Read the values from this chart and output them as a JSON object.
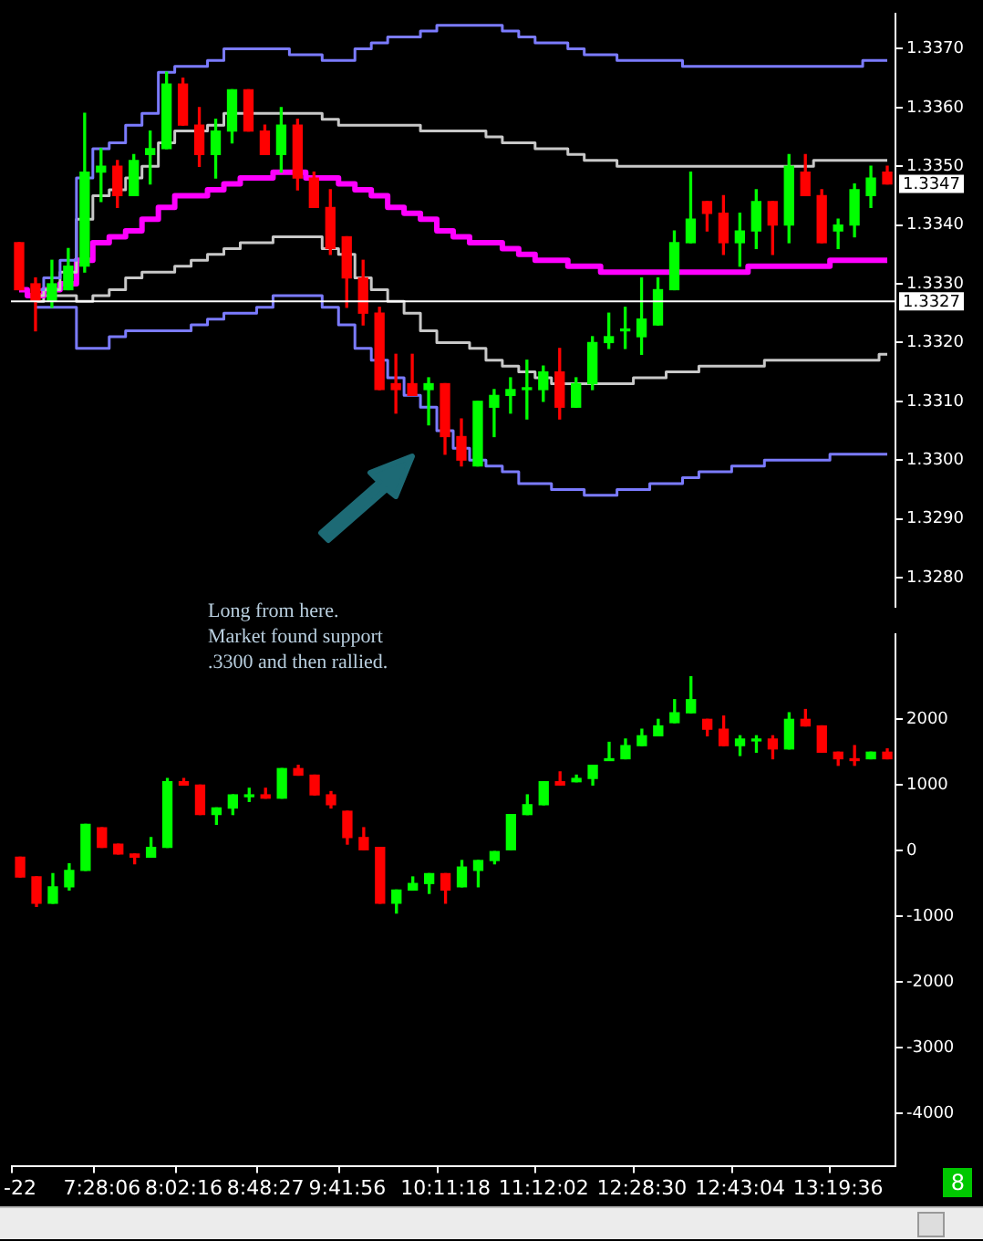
{
  "chart_data": [
    {
      "type": "candlestick",
      "categories": [
        null,
        null,
        null,
        null,
        null,
        null,
        null,
        null,
        null,
        null,
        null,
        null,
        null,
        null,
        null,
        null,
        null,
        null,
        null,
        null,
        null,
        null,
        null,
        null,
        null,
        null,
        null,
        null,
        null,
        null,
        null,
        null,
        null,
        null,
        null,
        null,
        null,
        null,
        null,
        null,
        null,
        null,
        null,
        null,
        null,
        null,
        null,
        null,
        null,
        null,
        null,
        null,
        null,
        null
      ],
      "ohlc": [
        [
          1.3337,
          1.3337,
          1.3329,
          1.3329
        ],
        [
          1.333,
          1.3331,
          1.3322,
          1.3327
        ],
        [
          1.3327,
          1.3334,
          1.3326,
          1.333
        ],
        [
          1.3329,
          1.3336,
          1.3329,
          1.3333
        ],
        [
          1.3333,
          1.3359,
          1.3332,
          1.3349
        ],
        [
          1.3349,
          1.3353,
          1.3344,
          1.335
        ],
        [
          1.335,
          1.3351,
          1.3343,
          1.3345
        ],
        [
          1.3345,
          1.3352,
          1.3345,
          1.3351
        ],
        [
          1.3352,
          1.3356,
          1.3347,
          1.3353
        ],
        [
          1.3353,
          1.3366,
          1.3353,
          1.3364
        ],
        [
          1.3364,
          1.3365,
          1.3357,
          1.3357
        ],
        [
          1.3357,
          1.336,
          1.335,
          1.3352
        ],
        [
          1.3352,
          1.3358,
          1.3348,
          1.3356
        ],
        [
          1.3356,
          1.3363,
          1.3354,
          1.3363
        ],
        [
          1.3363,
          1.3363,
          1.3356,
          1.3356
        ],
        [
          1.3356,
          1.3357,
          1.3352,
          1.3352
        ],
        [
          1.3352,
          1.336,
          1.3349,
          1.3357
        ],
        [
          1.3357,
          1.3358,
          1.3346,
          1.3348
        ],
        [
          1.3348,
          1.3349,
          1.3343,
          1.3343
        ],
        [
          1.3343,
          1.3346,
          1.3335,
          1.3336
        ],
        [
          1.3338,
          1.3338,
          1.3326,
          1.3331
        ],
        [
          1.3331,
          1.3334,
          1.3323,
          1.3325
        ],
        [
          1.3325,
          1.3326,
          1.3312,
          1.3312
        ],
        [
          1.3313,
          1.3318,
          1.3308,
          1.3312
        ],
        [
          1.3313,
          1.3318,
          1.3311,
          1.3311
        ],
        [
          1.3312,
          1.3314,
          1.3306,
          1.3313
        ],
        [
          1.3313,
          1.3313,
          1.3301,
          1.3304
        ],
        [
          1.3304,
          1.3307,
          1.3299,
          1.33
        ],
        [
          1.3299,
          1.331,
          1.3299,
          1.331
        ],
        [
          1.3309,
          1.3312,
          1.3304,
          1.3311
        ],
        [
          1.3311,
          1.3314,
          1.3308,
          1.3312
        ],
        [
          1.3312,
          1.3317,
          1.3307,
          1.3312
        ],
        [
          1.3312,
          1.3316,
          1.331,
          1.3315
        ],
        [
          1.3315,
          1.3319,
          1.3307,
          1.3309
        ],
        [
          1.3309,
          1.3314,
          1.3309,
          1.3313
        ],
        [
          1.3313,
          1.3321,
          1.3312,
          1.332
        ],
        [
          1.332,
          1.3325,
          1.3319,
          1.3321
        ],
        [
          1.3322,
          1.3326,
          1.3319,
          1.3322
        ],
        [
          1.3321,
          1.3331,
          1.3318,
          1.3324
        ],
        [
          1.3323,
          1.3331,
          1.3323,
          1.3329
        ],
        [
          1.3329,
          1.3339,
          1.3329,
          1.3337
        ],
        [
          1.3337,
          1.3349,
          1.3337,
          1.3341
        ],
        [
          1.3344,
          1.3344,
          1.3339,
          1.3342
        ],
        [
          1.3342,
          1.3345,
          1.3335,
          1.3337
        ],
        [
          1.3337,
          1.3342,
          1.3333,
          1.3339
        ],
        [
          1.3339,
          1.3346,
          1.3336,
          1.3344
        ],
        [
          1.3344,
          1.3344,
          1.3335,
          1.334
        ],
        [
          1.334,
          1.3352,
          1.3337,
          1.335
        ],
        [
          1.3349,
          1.3352,
          1.3345,
          1.3345
        ],
        [
          1.3345,
          1.3346,
          1.3337,
          1.3337
        ],
        [
          1.3339,
          1.3341,
          1.3336,
          1.334
        ],
        [
          1.334,
          1.3347,
          1.3338,
          1.3346
        ],
        [
          1.3345,
          1.335,
          1.3343,
          1.3348
        ],
        [
          1.3349,
          1.335,
          1.3347,
          1.3347
        ]
      ],
      "colors": [
        "#ff0000",
        "#ff0000",
        "#00ff00",
        "#00ff00",
        "#00ff00",
        "#00ff00",
        "#ff0000",
        "#00ff00",
        "#00ff00",
        "#00ff00",
        "#ff0000",
        "#ff0000",
        "#00ff00",
        "#00ff00",
        "#ff0000",
        "#ff0000",
        "#00ff00",
        "#ff0000",
        "#ff0000",
        "#ff0000",
        "#ff0000",
        "#ff0000",
        "#ff0000",
        "#ff0000",
        "#ff0000",
        "#00ff00",
        "#ff0000",
        "#ff0000",
        "#00ff00",
        "#00ff00",
        "#00ff00",
        "#00ff00",
        "#00ff00",
        "#ff0000",
        "#00ff00",
        "#00ff00",
        "#00ff00",
        "#00ff00",
        "#00ff00",
        "#00ff00",
        "#00ff00",
        "#00ff00",
        "#ff0000",
        "#ff0000",
        "#00ff00",
        "#00ff00",
        "#ff0000",
        "#00ff00",
        "#ff0000",
        "#ff0000",
        "#00ff00",
        "#00ff00",
        "#00ff00",
        "#ff0000"
      ],
      "series": [
        {
          "type": "step",
          "color": "#7b7bff",
          "values": [
            null,
            1.3329,
            1.3331,
            1.3334,
            1.3348,
            1.3353,
            1.3354,
            1.3357,
            1.3359,
            1.3366,
            1.3367,
            1.3367,
            1.3368,
            1.337,
            1.337,
            1.337,
            1.337,
            1.3369,
            1.3369,
            1.3368,
            1.3368,
            1.337,
            1.3371,
            1.3372,
            1.3372,
            1.3373,
            1.3374,
            1.3374,
            1.3374,
            1.3374,
            1.3373,
            1.3372,
            1.3371,
            1.3371,
            1.337,
            1.3369,
            1.3369,
            1.3368,
            1.3368,
            1.3368,
            1.3368,
            1.3367,
            1.3367,
            1.3367,
            1.3367,
            1.3367,
            1.3367,
            1.3367,
            1.3367,
            1.3367,
            1.3367,
            1.3367,
            1.3368,
            1.3368
          ]
        },
        {
          "type": "step",
          "color": "#c8c8c8",
          "values": [
            null,
            1.3328,
            1.3329,
            1.3332,
            1.3341,
            1.3345,
            1.3346,
            1.3348,
            1.335,
            1.3354,
            1.3356,
            1.3356,
            1.3357,
            1.3359,
            1.3359,
            1.3359,
            1.3359,
            1.3359,
            1.3359,
            1.3358,
            1.3357,
            1.3357,
            1.3357,
            1.3357,
            1.3357,
            1.3356,
            1.3356,
            1.3356,
            1.3356,
            1.3355,
            1.3354,
            1.3354,
            1.3353,
            1.3353,
            1.3352,
            1.3351,
            1.3351,
            1.335,
            1.335,
            1.335,
            1.335,
            1.335,
            1.335,
            1.335,
            1.335,
            1.335,
            1.335,
            1.335,
            1.335,
            1.3351,
            1.3351,
            1.3351,
            1.3351,
            1.3351
          ]
        },
        {
          "type": "step",
          "color": "#ff00ff",
          "values": [
            1.3329,
            1.3328,
            1.3329,
            1.333,
            1.3334,
            1.3337,
            1.3338,
            1.3339,
            1.3341,
            1.3343,
            1.3345,
            1.3345,
            1.3346,
            1.3347,
            1.3348,
            1.3348,
            1.3349,
            1.3349,
            1.3348,
            1.3348,
            1.3347,
            1.3346,
            1.3345,
            1.3343,
            1.3342,
            1.3341,
            1.3339,
            1.3338,
            1.3337,
            1.3337,
            1.3336,
            1.3335,
            1.3334,
            1.3334,
            1.3333,
            1.3333,
            1.3332,
            1.3332,
            1.3332,
            1.3332,
            1.3332,
            1.3332,
            1.3332,
            1.3332,
            1.3332,
            1.3333,
            1.3333,
            1.3333,
            1.3333,
            1.3333,
            1.3334,
            1.3334,
            1.3334,
            1.3334
          ]
        },
        {
          "type": "step",
          "color": "#c8c8c8",
          "values": [
            null,
            1.3327,
            1.3328,
            1.3328,
            1.3327,
            1.3328,
            1.3329,
            1.3331,
            1.3332,
            1.3332,
            1.3333,
            1.3334,
            1.3335,
            1.3336,
            1.3337,
            1.3337,
            1.3338,
            1.3338,
            1.3338,
            1.3336,
            1.3335,
            1.3331,
            1.3329,
            1.3327,
            1.3325,
            1.3322,
            1.332,
            1.332,
            1.3319,
            1.3317,
            1.3316,
            1.3315,
            1.3314,
            1.3313,
            1.3313,
            1.3313,
            1.3313,
            1.3313,
            1.3314,
            1.3314,
            1.3315,
            1.3315,
            1.3316,
            1.3316,
            1.3316,
            1.3316,
            1.3317,
            1.3317,
            1.3317,
            1.3317,
            1.3317,
            1.3317,
            1.3317,
            1.3318
          ]
        },
        {
          "type": "step",
          "color": "#7b7bff",
          "values": [
            null,
            1.3326,
            1.3326,
            1.3326,
            1.3319,
            1.3319,
            1.3321,
            1.3322,
            1.3322,
            1.3322,
            1.3322,
            1.3323,
            1.3324,
            1.3325,
            1.3325,
            1.3326,
            1.3328,
            1.3328,
            1.3328,
            1.3326,
            1.3323,
            1.3319,
            1.3317,
            1.3314,
            1.3311,
            1.3309,
            1.3305,
            1.3302,
            1.33,
            1.3299,
            1.3298,
            1.3296,
            1.3296,
            1.3295,
            1.3295,
            1.3294,
            1.3294,
            1.3295,
            1.3295,
            1.3296,
            1.3296,
            1.3297,
            1.3298,
            1.3298,
            1.3299,
            1.3299,
            1.33,
            1.33,
            1.33,
            1.33,
            1.3301,
            1.3301,
            1.3301,
            1.3301
          ]
        }
      ],
      "ref_lines": [
        {
          "axis": "y",
          "value": 1.3327,
          "label": "1.3327",
          "color": "#ffffff"
        }
      ],
      "annotations": [
        "Long from here.\nMarket found support\n.3300 and then rallied.",
        "1.3347"
      ],
      "ylim": [
        1.3275,
        1.3376
      ],
      "yticks": [
        {
          "value": 1.328,
          "label": "1.3280"
        },
        {
          "value": 1.329,
          "label": "1.3290"
        },
        {
          "value": 1.33,
          "label": "1.3300"
        },
        {
          "value": 1.331,
          "label": "1.3310"
        },
        {
          "value": 1.332,
          "label": "1.3320"
        },
        {
          "value": 1.333,
          "label": "1.3330"
        },
        {
          "value": 1.334,
          "label": "1.3340"
        },
        {
          "value": 1.335,
          "label": "1.3350"
        },
        {
          "value": 1.336,
          "label": "1.3360"
        },
        {
          "value": 1.337,
          "label": "1.3370"
        }
      ],
      "tick_labels": "y"
    },
    {
      "type": "candlestick",
      "categories": [
        "-22",
        null,
        null,
        null,
        null,
        "7:28:06",
        null,
        null,
        null,
        null,
        "8:02:16",
        null,
        null,
        null,
        null,
        "8:48:27",
        null,
        null,
        null,
        null,
        "9:41:56",
        null,
        null,
        null,
        null,
        null,
        "10:11:18",
        null,
        null,
        null,
        null,
        null,
        "11:12:02",
        null,
        null,
        null,
        null,
        null,
        "12:28:30",
        null,
        null,
        null,
        null,
        null,
        "12:43:04",
        null,
        null,
        null,
        null,
        null,
        "13:19:36",
        null,
        null,
        null
      ],
      "ohlc": [
        [
          -100,
          -100,
          -400,
          -400
        ],
        [
          -400,
          -400,
          -850,
          -800
        ],
        [
          -800,
          -350,
          -800,
          -550
        ],
        [
          -550,
          -200,
          -600,
          -300
        ],
        [
          -300,
          400,
          -300,
          400
        ],
        [
          350,
          350,
          50,
          50
        ],
        [
          100,
          100,
          -50,
          -50
        ],
        [
          -50,
          -50,
          -200,
          -100
        ],
        [
          -100,
          200,
          -100,
          50
        ],
        [
          50,
          1100,
          50,
          1050
        ],
        [
          1050,
          1100,
          1000,
          1000
        ],
        [
          1000,
          1000,
          550,
          550
        ],
        [
          550,
          650,
          400,
          650
        ],
        [
          650,
          850,
          550,
          850
        ],
        [
          850,
          950,
          750,
          850
        ],
        [
          850,
          950,
          800,
          800
        ],
        [
          800,
          1250,
          800,
          1250
        ],
        [
          1250,
          1300,
          1150,
          1150
        ],
        [
          1150,
          1150,
          850,
          850
        ],
        [
          850,
          900,
          650,
          700
        ],
        [
          600,
          600,
          100,
          200
        ],
        [
          200,
          350,
          0,
          0
        ],
        [
          50,
          50,
          -800,
          -800
        ],
        [
          -800,
          -600,
          -950,
          -600
        ],
        [
          -600,
          -400,
          -600,
          -500
        ],
        [
          -500,
          -350,
          -650,
          -350
        ],
        [
          -350,
          -350,
          -800,
          -600
        ],
        [
          -550,
          -150,
          -550,
          -250
        ],
        [
          -300,
          -150,
          -550,
          -150
        ],
        [
          -150,
          0,
          -200,
          0
        ],
        [
          0,
          550,
          0,
          550
        ],
        [
          550,
          850,
          550,
          700
        ],
        [
          700,
          1050,
          700,
          1050
        ],
        [
          1050,
          1200,
          1000,
          1000
        ],
        [
          1050,
          1150,
          1050,
          1100
        ],
        [
          1100,
          1300,
          1000,
          1300
        ],
        [
          1400,
          1650,
          1400,
          1400
        ],
        [
          1400,
          1700,
          1400,
          1600
        ],
        [
          1600,
          1850,
          1600,
          1750
        ],
        [
          1750,
          2000,
          1750,
          1900
        ],
        [
          1950,
          2300,
          1950,
          2100
        ],
        [
          2100,
          2650,
          2100,
          2300
        ],
        [
          2000,
          2000,
          1750,
          1850
        ],
        [
          1850,
          2050,
          1600,
          1600
        ],
        [
          1600,
          1750,
          1450,
          1700
        ],
        [
          1700,
          1750,
          1500,
          1700
        ],
        [
          1700,
          1750,
          1400,
          1550
        ],
        [
          1550,
          2100,
          1550,
          2000
        ],
        [
          2000,
          2150,
          1900,
          1900
        ],
        [
          1900,
          1900,
          1500,
          1500
        ],
        [
          1500,
          1500,
          1300,
          1400
        ],
        [
          1400,
          1600,
          1300,
          1400
        ],
        [
          1400,
          1500,
          1400,
          1500
        ],
        [
          1500,
          1550,
          1400,
          1400
        ]
      ],
      "colors": [
        "#ff0000",
        "#ff0000",
        "#00ff00",
        "#00ff00",
        "#00ff00",
        "#ff0000",
        "#ff0000",
        "#ff0000",
        "#00ff00",
        "#00ff00",
        "#ff0000",
        "#ff0000",
        "#00ff00",
        "#00ff00",
        "#00ff00",
        "#ff0000",
        "#00ff00",
        "#ff0000",
        "#ff0000",
        "#ff0000",
        "#ff0000",
        "#ff0000",
        "#ff0000",
        "#00ff00",
        "#00ff00",
        "#00ff00",
        "#ff0000",
        "#00ff00",
        "#00ff00",
        "#00ff00",
        "#00ff00",
        "#00ff00",
        "#00ff00",
        "#ff0000",
        "#00ff00",
        "#00ff00",
        "#00ff00",
        "#00ff00",
        "#00ff00",
        "#00ff00",
        "#00ff00",
        "#00ff00",
        "#ff0000",
        "#ff0000",
        "#00ff00",
        "#00ff00",
        "#ff0000",
        "#00ff00",
        "#ff0000",
        "#ff0000",
        "#ff0000",
        "#ff0000",
        "#00ff00",
        "#ff0000"
      ],
      "annotations": [
        "8"
      ],
      "ylim": [
        -4800,
        3300
      ],
      "yticks": [
        -4000,
        -3000,
        -2000,
        -1000,
        0,
        1000,
        2000
      ]
    }
  ]
}
